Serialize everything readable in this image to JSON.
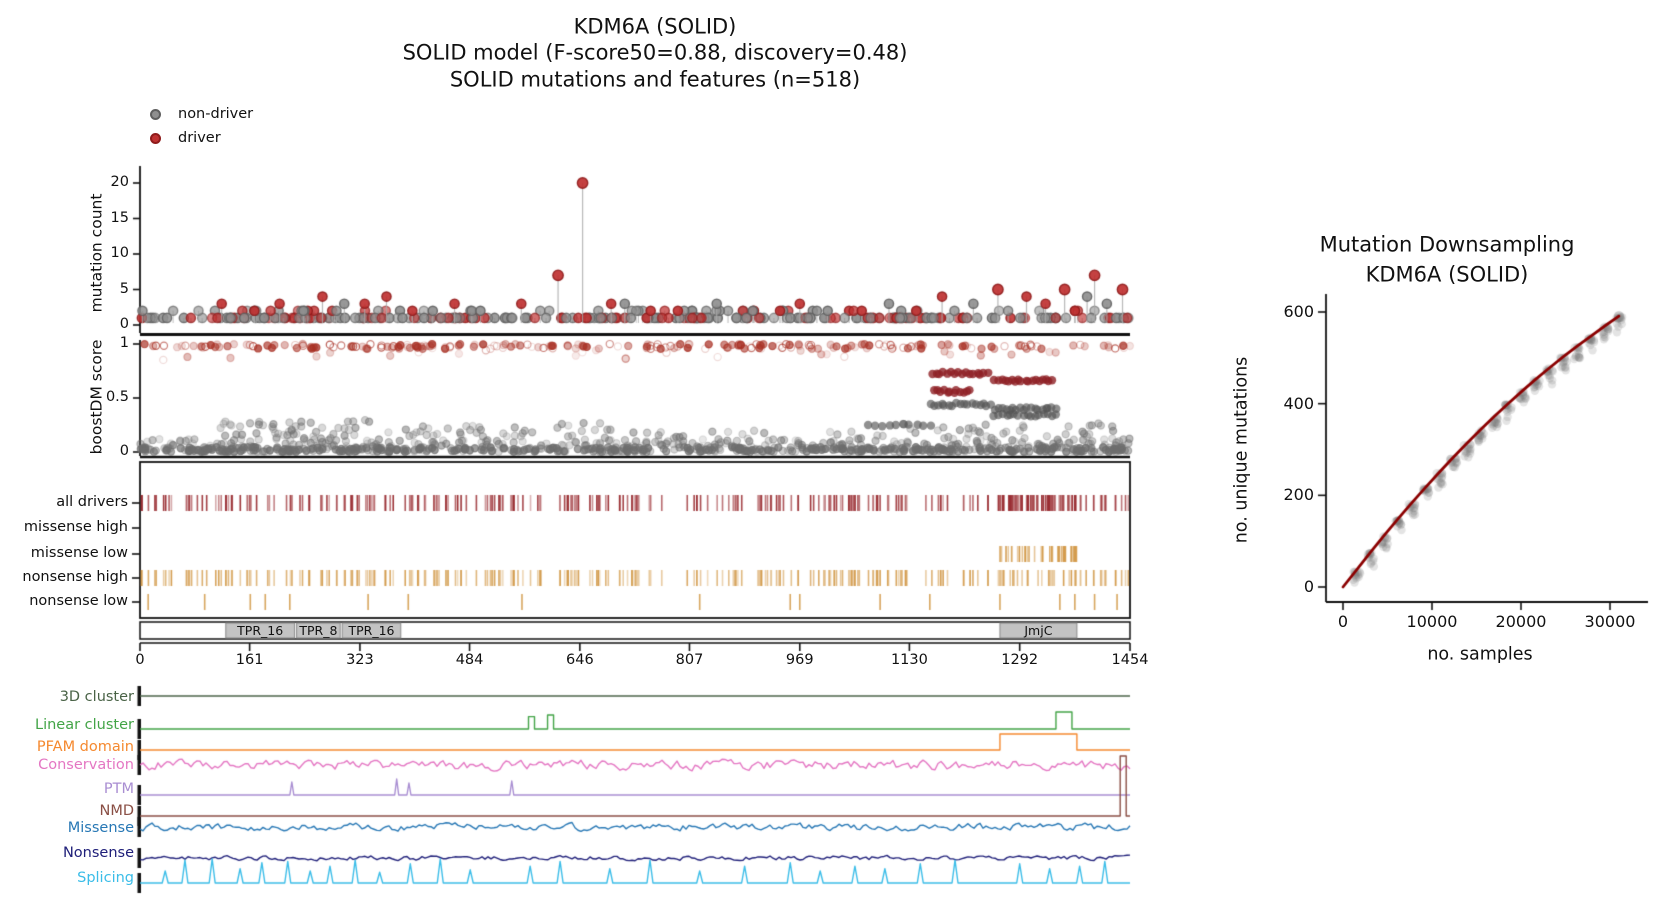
{
  "header": {
    "title_line1": "KDM6A (SOLID)",
    "title_line2": "SOLID model (F-score50=0.88, discovery=0.48)",
    "title_line3": "SOLID mutations and features (n=518)"
  },
  "legend": {
    "items": [
      {
        "label": "non-driver",
        "color": "#8f8f8f",
        "edge": "#5f5f5f"
      },
      {
        "label": "driver",
        "color": "#bf3131",
        "edge": "#8f1b1b"
      }
    ]
  },
  "chart_data": [
    {
      "id": "mutation-needle-plot",
      "type": "scatter",
      "ylabel": "mutation count",
      "yticks": [
        0,
        5,
        10,
        15,
        20
      ],
      "ylim": [
        0,
        21
      ],
      "xlim": [
        0,
        1454
      ],
      "colors": {
        "driver": "#bf3131",
        "driver_edge": "#8f1b1b",
        "non_driver": "#8f8f8f",
        "non_driver_edge": "#5f5f5f",
        "stem": "#a8a8a8"
      },
      "peaks": [
        [
          120,
          3,
          1
        ],
        [
          168,
          2,
          1
        ],
        [
          205,
          3,
          1
        ],
        [
          240,
          2,
          0
        ],
        [
          268,
          4,
          1
        ],
        [
          300,
          3,
          0
        ],
        [
          330,
          3,
          1
        ],
        [
          362,
          4,
          1
        ],
        [
          400,
          2,
          1
        ],
        [
          430,
          2,
          0
        ],
        [
          462,
          3,
          1
        ],
        [
          500,
          2,
          0
        ],
        [
          560,
          3,
          1
        ],
        [
          614,
          7,
          1
        ],
        [
          650,
          20,
          1
        ],
        [
          692,
          3,
          1
        ],
        [
          712,
          3,
          0
        ],
        [
          750,
          2,
          1
        ],
        [
          790,
          2,
          1
        ],
        [
          847,
          3,
          0
        ],
        [
          900,
          2,
          0
        ],
        [
          940,
          2,
          1
        ],
        [
          969,
          3,
          1
        ],
        [
          1010,
          2,
          0
        ],
        [
          1060,
          2,
          1
        ],
        [
          1100,
          3,
          0
        ],
        [
          1140,
          2,
          1
        ],
        [
          1178,
          4,
          1
        ],
        [
          1224,
          3,
          0
        ],
        [
          1260,
          5,
          1
        ],
        [
          1302,
          4,
          1
        ],
        [
          1330,
          3,
          1
        ],
        [
          1358,
          5,
          1
        ],
        [
          1391,
          4,
          0
        ],
        [
          1402,
          7,
          1
        ],
        [
          1420,
          3,
          0
        ],
        [
          1443,
          5,
          1
        ]
      ],
      "baseline_points": {
        "n": 300,
        "seed": 7,
        "counts": [
          1,
          2
        ],
        "driver_fraction": 0.38
      }
    },
    {
      "id": "boostdm-score-panel",
      "type": "scatter",
      "ylabel": "boostDM score",
      "yticks": [
        0,
        0.5,
        1
      ],
      "ylim": [
        0,
        1
      ],
      "bands": [
        {
          "n": 210,
          "x": [
            0,
            1454
          ],
          "y": [
            0.955,
            1.0
          ],
          "c": "driver",
          "a": [
            0.12,
            0.8
          ],
          "seed": 101
        },
        {
          "n": 26,
          "x": [
            0,
            1454
          ],
          "y": [
            0.85,
            0.95
          ],
          "c": "driver",
          "a": [
            0.08,
            0.35
          ],
          "seed": 102
        },
        {
          "n": 520,
          "x": [
            0,
            1454
          ],
          "y": [
            0.0,
            0.045
          ],
          "c": "gray",
          "a": [
            0.25,
            0.8
          ],
          "seed": 103
        },
        {
          "n": 170,
          "x": [
            0,
            1454
          ],
          "y": [
            0.045,
            0.12
          ],
          "c": "gray",
          "a": [
            0.15,
            0.5
          ],
          "seed": 104
        },
        {
          "n": 55,
          "x": [
            110,
            350
          ],
          "y": [
            0.1,
            0.3
          ],
          "c": "gray",
          "a": [
            0.2,
            0.5
          ],
          "seed": 105
        },
        {
          "n": 45,
          "x": [
            350,
            700
          ],
          "y": [
            0.1,
            0.28
          ],
          "c": "gray",
          "a": [
            0.2,
            0.5
          ],
          "seed": 106
        },
        {
          "n": 35,
          "x": [
            700,
            1100
          ],
          "y": [
            0.05,
            0.2
          ],
          "c": "gray",
          "a": [
            0.2,
            0.5
          ],
          "seed": 107
        },
        {
          "n": 55,
          "x": [
            1100,
            1454
          ],
          "y": [
            0.05,
            0.27
          ],
          "c": "gray",
          "a": [
            0.2,
            0.5
          ],
          "seed": 108
        }
      ],
      "cluster_rows": [
        {
          "x": [
            1165,
            1245
          ],
          "score": 0.73,
          "n": 16,
          "c": "driver"
        },
        {
          "x": [
            1255,
            1340
          ],
          "score": 0.66,
          "n": 18,
          "c": "driver"
        },
        {
          "x": [
            1165,
            1220
          ],
          "score": 0.56,
          "n": 12,
          "c": "driver"
        },
        {
          "x": [
            1160,
            1250
          ],
          "score": 0.44,
          "n": 17,
          "c": "gray"
        },
        {
          "x": [
            1255,
            1345
          ],
          "score": 0.4,
          "n": 18,
          "c": "gray"
        },
        {
          "x": [
            1255,
            1345
          ],
          "score": 0.34,
          "n": 16,
          "c": "gray"
        },
        {
          "x": [
            1070,
            1160
          ],
          "score": 0.25,
          "n": 10,
          "c": "gray"
        }
      ]
    },
    {
      "id": "driver-rug-tracks",
      "type": "rug",
      "shared_ticks": {
        "n": 265,
        "seed": 201,
        "x": [
          2,
          1452
        ]
      },
      "rows": [
        {
          "label": "all drivers",
          "color": "#9a2e33",
          "mode": "shared",
          "extra_cluster": {
            "x": [
              1263,
              1376
            ],
            "n": 34,
            "seed": 202
          }
        },
        {
          "label": "missense high",
          "color": "#d39c4e",
          "mode": "empty"
        },
        {
          "label": "missense low",
          "color": "#d39c4e",
          "mode": "cluster",
          "cluster": {
            "x": [
              1263,
              1376
            ],
            "n": 40,
            "seed": 203
          }
        },
        {
          "label": "nonsense high",
          "color": "#d39c4e",
          "mode": "shared"
        },
        {
          "label": "nonsense low",
          "color": "#d39c4e",
          "mode": "list",
          "ticks": [
            12,
            95,
            162,
            184,
            220,
            335,
            394,
            561,
            822,
            955,
            969,
            1087,
            1160,
            1263,
            1351,
            1373,
            1402,
            1435
          ]
        }
      ]
    },
    {
      "id": "protein-domain-axis",
      "type": "table",
      "protein_length": 1454,
      "domains": [
        {
          "name": "TPR_16",
          "start": 126,
          "end": 227
        },
        {
          "name": "TPR_8",
          "start": 230,
          "end": 294
        },
        {
          "name": "TPR_16",
          "start": 297,
          "end": 383
        },
        {
          "name": "JmjC",
          "start": 1263,
          "end": 1376
        }
      ],
      "xticks": [
        0,
        161,
        323,
        484,
        646,
        807,
        969,
        1130,
        1292,
        1454
      ],
      "domain_fill": "#c3c3c3",
      "domain_edge": "#8a8a8a"
    },
    {
      "id": "feature-tracks",
      "type": "line",
      "rows": [
        {
          "label": "3D cluster",
          "color": "#4a6347",
          "kind": "flat"
        },
        {
          "label": "Linear cluster",
          "color": "#43a447",
          "kind": "spikes",
          "square": true,
          "spikes": [
            [
              575,
              0.62,
              3
            ],
            [
              603,
              0.7,
              3
            ],
            [
              1357,
              0.85,
              8
            ]
          ]
        },
        {
          "label": "PFAM domain",
          "color": "#f5892f",
          "kind": "step",
          "steps": [
            [
              1263,
              1376,
              0.8
            ]
          ]
        },
        {
          "label": "Conservation",
          "color": "#e477c3",
          "kind": "noise",
          "amp": 5.5,
          "seed": 301
        },
        {
          "label": "PTM",
          "color": "#a98ed2",
          "kind": "spikes",
          "square": false,
          "spikes": [
            [
              223,
              0.65,
              2
            ],
            [
              377,
              0.8,
              2
            ],
            [
              395,
              0.6,
              2
            ],
            [
              546,
              0.7,
              2
            ]
          ]
        },
        {
          "label": "NMD",
          "color": "#8a4f45",
          "kind": "spikes",
          "square": true,
          "spikes": [
            [
              1444,
              3.0,
              3
            ]
          ]
        },
        {
          "label": "Missense",
          "color": "#2878b5",
          "kind": "noise",
          "amp": 4,
          "seed": 302
        },
        {
          "label": "Nonsense",
          "color": "#20207a",
          "kind": "noise",
          "amp": 2.5,
          "seed": 303
        },
        {
          "label": "Splicing",
          "color": "#3bbde8",
          "kind": "spikes",
          "square": false,
          "spikes": [
            [
              37,
              0.5
            ],
            [
              66,
              0.95
            ],
            [
              106,
              1.0
            ],
            [
              147,
              0.6
            ],
            [
              179,
              0.85
            ],
            [
              217,
              0.9
            ],
            [
              250,
              0.5
            ],
            [
              279,
              0.7
            ],
            [
              316,
              0.95
            ],
            [
              352,
              0.45
            ],
            [
              397,
              0.8
            ],
            [
              441,
              1.0
            ],
            [
              485,
              0.55
            ],
            [
              573,
              0.7
            ],
            [
              617,
              0.9
            ],
            [
              690,
              0.6
            ],
            [
              749,
              0.95
            ],
            [
              822,
              0.5
            ],
            [
              888,
              0.7
            ],
            [
              955,
              0.85
            ],
            [
              999,
              0.5
            ],
            [
              1050,
              0.7
            ],
            [
              1094,
              0.6
            ],
            [
              1146,
              0.8
            ],
            [
              1197,
              0.95
            ],
            [
              1292,
              0.8
            ],
            [
              1336,
              0.6
            ],
            [
              1380,
              0.7
            ],
            [
              1417,
              0.9
            ]
          ]
        }
      ]
    },
    {
      "id": "mutation-downsampling",
      "type": "line",
      "title_line1": "Mutation Downsampling",
      "title_line2": "KDM6A (SOLID)",
      "xlabel": "no. samples",
      "ylabel": "no. unique mutations",
      "xticks": [
        0,
        10000,
        20000,
        30000
      ],
      "yticks": [
        0,
        200,
        400,
        600
      ],
      "xlim": [
        0,
        31000
      ],
      "ylim": [
        0,
        620
      ],
      "curve_color": "#8b0000",
      "scatter_color": "#777777",
      "x": [
        0,
        1550,
        3100,
        4650,
        6200,
        7750,
        9300,
        10850,
        12400,
        13950,
        15500,
        17050,
        18600,
        20150,
        21700,
        23250,
        24800,
        26350,
        27900,
        29450,
        31000
      ],
      "y": [
        0,
        38,
        76,
        113,
        149,
        184,
        218,
        251,
        283,
        314,
        344,
        373,
        401,
        428,
        454,
        479,
        503,
        526,
        548,
        570,
        591
      ],
      "scatter": {
        "per_x": 14,
        "spread": 38,
        "seed": 401
      }
    }
  ]
}
